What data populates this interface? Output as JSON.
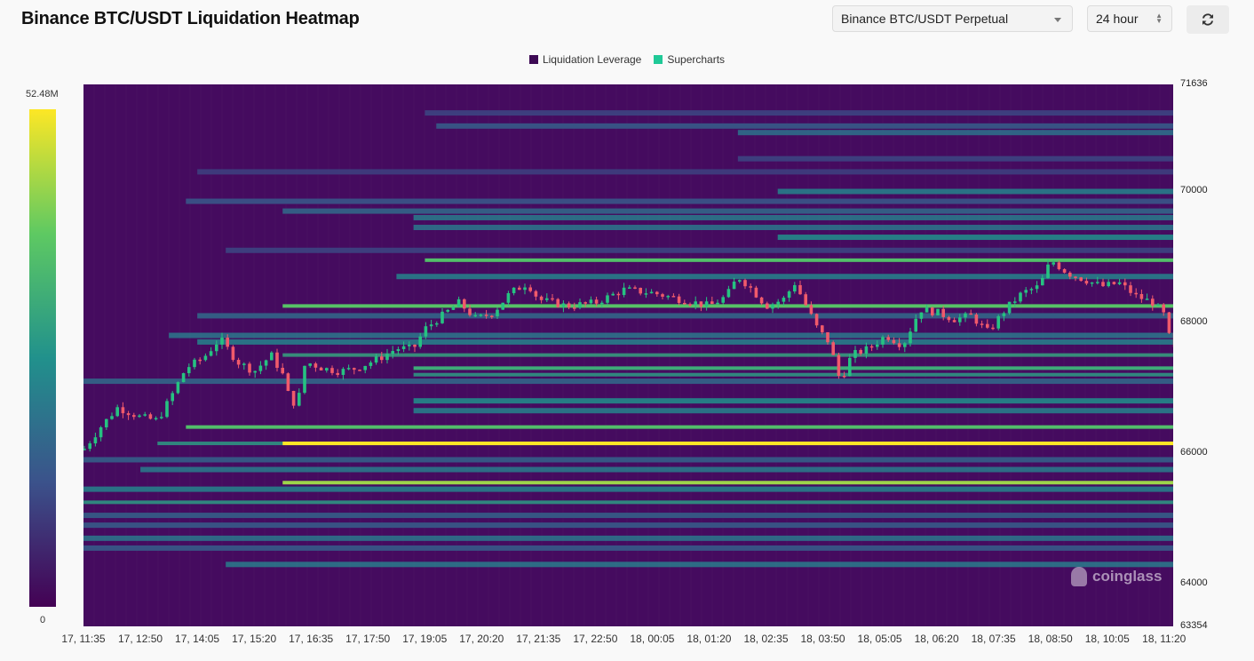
{
  "header": {
    "title": "Binance BTC/USDT Liquidation Heatmap",
    "market_select": "Binance BTC/USDT Perpetual",
    "range_select": "24 hour",
    "refresh_icon": "refresh-icon"
  },
  "chart_data": {
    "type": "heatmap",
    "title": "Binance BTC/USDT Liquidation Heatmap",
    "legend": [
      {
        "name": "Liquidation Leverage",
        "color": "#3d0a54"
      },
      {
        "name": "Supercharts",
        "color": "#20c997"
      }
    ],
    "colorbar": {
      "max_label": "52.48M",
      "min_label": "0",
      "max": 52480000,
      "min": 0
    },
    "y_axis": {
      "min": 63354,
      "max": 71636,
      "ticks": [
        "71636",
        "70000",
        "68000",
        "66000",
        "64000",
        "63354"
      ]
    },
    "x_axis": {
      "ticks": [
        "17, 11:35",
        "17, 12:50",
        "17, 14:05",
        "17, 15:20",
        "17, 16:35",
        "17, 17:50",
        "17, 19:05",
        "17, 20:20",
        "17, 21:35",
        "17, 22:50",
        "18, 00:05",
        "18, 01:20",
        "18, 02:35",
        "18, 03:50",
        "18, 05:05",
        "18, 06:20",
        "18, 07:35",
        "18, 08:50",
        "18, 10:05",
        "18, 11:20"
      ]
    },
    "liquidation_bands": [
      {
        "price": 71200,
        "start": 6.0,
        "intensity": 0.22
      },
      {
        "price": 71000,
        "start": 6.2,
        "intensity": 0.3
      },
      {
        "price": 70900,
        "start": 11.5,
        "intensity": 0.38
      },
      {
        "price": 70500,
        "start": 11.5,
        "intensity": 0.22
      },
      {
        "price": 70300,
        "start": 2.0,
        "intensity": 0.2
      },
      {
        "price": 70000,
        "start": 12.2,
        "intensity": 0.45
      },
      {
        "price": 69850,
        "start": 1.8,
        "intensity": 0.28
      },
      {
        "price": 69700,
        "start": 3.5,
        "intensity": 0.35
      },
      {
        "price": 69600,
        "start": 5.8,
        "intensity": 0.42
      },
      {
        "price": 69450,
        "start": 5.8,
        "intensity": 0.4
      },
      {
        "price": 69300,
        "start": 12.2,
        "intensity": 0.5
      },
      {
        "price": 69100,
        "start": 2.5,
        "intensity": 0.22
      },
      {
        "price": 68950,
        "start": 6.0,
        "intensity": 0.7
      },
      {
        "price": 68700,
        "start": 5.5,
        "intensity": 0.45
      },
      {
        "price": 68250,
        "start": 3.5,
        "intensity": 0.72
      },
      {
        "price": 68100,
        "start": 2.0,
        "intensity": 0.35
      },
      {
        "price": 67800,
        "start": 1.5,
        "intensity": 0.4
      },
      {
        "price": 67700,
        "start": 2.0,
        "intensity": 0.45
      },
      {
        "price": 67500,
        "start": 3.5,
        "intensity": 0.58
      },
      {
        "price": 67300,
        "start": 5.8,
        "intensity": 0.62
      },
      {
        "price": 67200,
        "start": 5.8,
        "intensity": 0.55
      },
      {
        "price": 67100,
        "start": 0.0,
        "intensity": 0.35
      },
      {
        "price": 66800,
        "start": 5.8,
        "intensity": 0.5
      },
      {
        "price": 66650,
        "start": 5.8,
        "intensity": 0.45
      },
      {
        "price": 66400,
        "start": 1.8,
        "intensity": 0.7
      },
      {
        "price": 66150,
        "start": 1.3,
        "intensity": 0.55
      },
      {
        "price": 66150,
        "start": 3.5,
        "intensity": 1.0
      },
      {
        "price": 65900,
        "start": 0.0,
        "intensity": 0.32
      },
      {
        "price": 65750,
        "start": 1.0,
        "intensity": 0.42
      },
      {
        "price": 65550,
        "start": 3.5,
        "intensity": 0.85
      },
      {
        "price": 65450,
        "start": 0.0,
        "intensity": 0.45
      },
      {
        "price": 65250,
        "start": 0.0,
        "intensity": 0.55
      },
      {
        "price": 65050,
        "start": 0.0,
        "intensity": 0.32
      },
      {
        "price": 64900,
        "start": 0.0,
        "intensity": 0.3
      },
      {
        "price": 64700,
        "start": 0.0,
        "intensity": 0.4
      },
      {
        "price": 64550,
        "start": 0.0,
        "intensity": 0.3
      },
      {
        "price": 64300,
        "start": 2.5,
        "intensity": 0.42
      }
    ],
    "price_path": [
      {
        "t": 0.0,
        "p": 66050
      },
      {
        "t": 0.3,
        "p": 66400
      },
      {
        "t": 0.6,
        "p": 66700
      },
      {
        "t": 1.0,
        "p": 66550
      },
      {
        "t": 1.3,
        "p": 66500
      },
      {
        "t": 1.5,
        "p": 66800
      },
      {
        "t": 1.8,
        "p": 67300
      },
      {
        "t": 2.1,
        "p": 67450
      },
      {
        "t": 2.4,
        "p": 67750
      },
      {
        "t": 2.7,
        "p": 67400
      },
      {
        "t": 3.0,
        "p": 67250
      },
      {
        "t": 3.3,
        "p": 67500
      },
      {
        "t": 3.5,
        "p": 67200
      },
      {
        "t": 3.6,
        "p": 66900
      },
      {
        "t": 3.75,
        "p": 66700
      },
      {
        "t": 3.9,
        "p": 67400
      },
      {
        "t": 4.2,
        "p": 67300
      },
      {
        "t": 4.5,
        "p": 67250
      },
      {
        "t": 4.8,
        "p": 67300
      },
      {
        "t": 5.2,
        "p": 67450
      },
      {
        "t": 5.5,
        "p": 67600
      },
      {
        "t": 5.8,
        "p": 67600
      },
      {
        "t": 6.0,
        "p": 67900
      },
      {
        "t": 6.3,
        "p": 68100
      },
      {
        "t": 6.6,
        "p": 68300
      },
      {
        "t": 6.9,
        "p": 68050
      },
      {
        "t": 7.2,
        "p": 68150
      },
      {
        "t": 7.5,
        "p": 68450
      },
      {
        "t": 7.8,
        "p": 68600
      },
      {
        "t": 8.0,
        "p": 68350
      },
      {
        "t": 8.5,
        "p": 68250
      },
      {
        "t": 9.0,
        "p": 68300
      },
      {
        "t": 9.5,
        "p": 68500
      },
      {
        "t": 10.0,
        "p": 68450
      },
      {
        "t": 10.5,
        "p": 68350
      },
      {
        "t": 11.0,
        "p": 68250
      },
      {
        "t": 11.3,
        "p": 68400
      },
      {
        "t": 11.5,
        "p": 68700
      },
      {
        "t": 11.7,
        "p": 68550
      },
      {
        "t": 12.0,
        "p": 68250
      },
      {
        "t": 12.3,
        "p": 68350
      },
      {
        "t": 12.5,
        "p": 68600
      },
      {
        "t": 12.7,
        "p": 68250
      },
      {
        "t": 12.9,
        "p": 67900
      },
      {
        "t": 13.1,
        "p": 67700
      },
      {
        "t": 13.3,
        "p": 67100
      },
      {
        "t": 13.5,
        "p": 67500
      },
      {
        "t": 13.8,
        "p": 67600
      },
      {
        "t": 14.1,
        "p": 67800
      },
      {
        "t": 14.4,
        "p": 67650
      },
      {
        "t": 14.7,
        "p": 68200
      },
      {
        "t": 15.0,
        "p": 68150
      },
      {
        "t": 15.3,
        "p": 68050
      },
      {
        "t": 15.6,
        "p": 68100
      },
      {
        "t": 15.9,
        "p": 67850
      },
      {
        "t": 16.2,
        "p": 68200
      },
      {
        "t": 16.5,
        "p": 68450
      },
      {
        "t": 16.8,
        "p": 68550
      },
      {
        "t": 17.0,
        "p": 68950
      },
      {
        "t": 17.3,
        "p": 68750
      },
      {
        "t": 17.6,
        "p": 68650
      },
      {
        "t": 17.9,
        "p": 68550
      },
      {
        "t": 18.2,
        "p": 68600
      },
      {
        "t": 18.5,
        "p": 68400
      },
      {
        "t": 18.8,
        "p": 68300
      },
      {
        "t": 19.0,
        "p": 68100
      },
      {
        "t": 19.1,
        "p": 67700
      },
      {
        "t": 19.2,
        "p": 67550
      }
    ]
  }
}
